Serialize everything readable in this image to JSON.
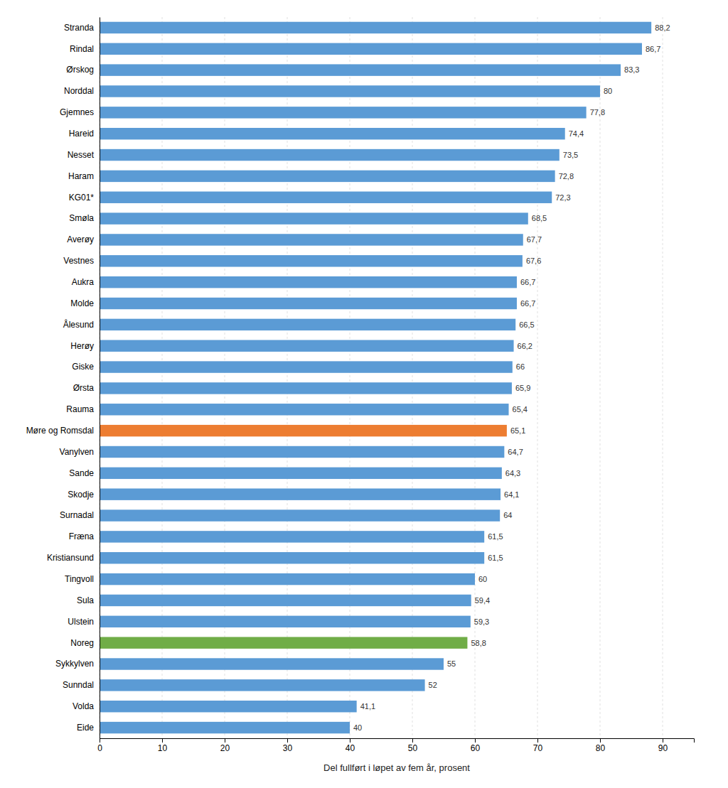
{
  "chart_data": {
    "type": "bar",
    "orientation": "horizontal",
    "categories": [
      "Stranda",
      "Rindal",
      "Ørskog",
      "Norddal",
      "Gjemnes",
      "Hareid",
      "Nesset",
      "Haram",
      "KG01*",
      "Smøla",
      "Averøy",
      "Vestnes",
      "Aukra",
      "Molde",
      "Ålesund",
      "Herøy",
      "Giske",
      "Ørsta",
      "Rauma",
      "Møre og Romsdal",
      "Vanylven",
      "Sande",
      "Skodje",
      "Surnadal",
      "Fræna",
      "Kristiansund",
      "Tingvoll",
      "Sula",
      "Ulstein",
      "Noreg",
      "Sykkylven",
      "Sunndal",
      "Volda",
      "Eide"
    ],
    "values": [
      88.2,
      86.7,
      83.3,
      80.0,
      77.8,
      74.4,
      73.5,
      72.8,
      72.3,
      68.5,
      67.7,
      67.6,
      66.7,
      66.7,
      66.5,
      66.2,
      66.0,
      65.9,
      65.4,
      65.1,
      64.7,
      64.3,
      64.1,
      64.0,
      61.5,
      61.5,
      60.0,
      59.4,
      59.3,
      58.8,
      55.0,
      52.0,
      41.1,
      40.0
    ],
    "value_labels": [
      "88,2",
      "86,7",
      "83,3",
      "80",
      "77,8",
      "74,4",
      "73,5",
      "72,8",
      "72,3",
      "68,5",
      "67,7",
      "67,6",
      "66,7",
      "66,7",
      "66,5",
      "66,2",
      "66",
      "65,9",
      "65,4",
      "65,1",
      "64,7",
      "64,3",
      "64,1",
      "64",
      "61,5",
      "61,5",
      "60",
      "59,4",
      "59,3",
      "58,8",
      "55",
      "52",
      "41,1",
      "40"
    ],
    "colors": [
      "#5b9bd5",
      "#5b9bd5",
      "#5b9bd5",
      "#5b9bd5",
      "#5b9bd5",
      "#5b9bd5",
      "#5b9bd5",
      "#5b9bd5",
      "#5b9bd5",
      "#5b9bd5",
      "#5b9bd5",
      "#5b9bd5",
      "#5b9bd5",
      "#5b9bd5",
      "#5b9bd5",
      "#5b9bd5",
      "#5b9bd5",
      "#5b9bd5",
      "#5b9bd5",
      "#ed7d31",
      "#5b9bd5",
      "#5b9bd5",
      "#5b9bd5",
      "#5b9bd5",
      "#5b9bd5",
      "#5b9bd5",
      "#5b9bd5",
      "#5b9bd5",
      "#5b9bd5",
      "#70ad47",
      "#5b9bd5",
      "#5b9bd5",
      "#5b9bd5",
      "#5b9bd5"
    ],
    "xlabel": "Del fullført i løpet av fem år, prosent",
    "xlim": [
      0,
      95
    ],
    "xticks": [
      0,
      10,
      20,
      30,
      40,
      50,
      60,
      70,
      80,
      90
    ],
    "grid": true,
    "data_labels": true
  }
}
